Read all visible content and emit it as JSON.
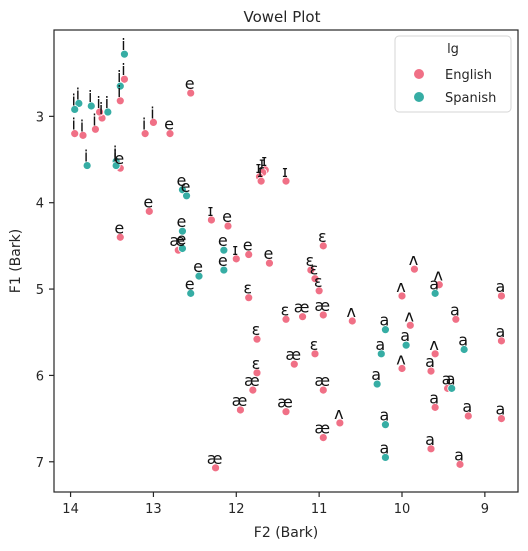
{
  "chart_data": {
    "type": "scatter",
    "title": "Vowel Plot",
    "xlabel": "F2 (Bark)",
    "ylabel": "F1 (Bark)",
    "xlim": [
      14.2,
      8.6
    ],
    "ylim": [
      7.35,
      2.0
    ],
    "xticks": [
      14,
      13,
      12,
      11,
      10,
      9
    ],
    "yticks": [
      3,
      4,
      5,
      6,
      7
    ],
    "grid": false,
    "legend": {
      "title": "lg",
      "placement": "top-right",
      "entries": [
        "English",
        "Spanish"
      ]
    },
    "colors": {
      "English": "#f07086",
      "Spanish": "#36ada4"
    },
    "series": [
      {
        "name": "English",
        "points": [
          {
            "x": 13.35,
            "y": 2.57,
            "label": "i"
          },
          {
            "x": 13.0,
            "y": 3.07,
            "label": "i"
          },
          {
            "x": 13.4,
            "y": 2.82,
            "label": "i"
          },
          {
            "x": 13.1,
            "y": 3.2,
            "label": "i"
          },
          {
            "x": 13.62,
            "y": 3.02,
            "label": "i"
          },
          {
            "x": 13.65,
            "y": 2.95,
            "label": "i"
          },
          {
            "x": 13.7,
            "y": 3.15,
            "label": "i"
          },
          {
            "x": 13.85,
            "y": 3.22,
            "label": "i"
          },
          {
            "x": 13.95,
            "y": 3.2,
            "label": "i"
          },
          {
            "x": 13.4,
            "y": 3.6,
            "label": "e"
          },
          {
            "x": 12.55,
            "y": 2.73,
            "label": "e"
          },
          {
            "x": 12.8,
            "y": 3.2,
            "label": "e"
          },
          {
            "x": 13.05,
            "y": 4.1,
            "label": "e"
          },
          {
            "x": 13.4,
            "y": 4.4,
            "label": "e"
          },
          {
            "x": 12.1,
            "y": 4.27,
            "label": "e"
          },
          {
            "x": 11.85,
            "y": 4.6,
            "label": "e"
          },
          {
            "x": 11.6,
            "y": 4.7,
            "label": "e"
          },
          {
            "x": 11.65,
            "y": 3.62,
            "label": "ɪ"
          },
          {
            "x": 11.68,
            "y": 3.65,
            "label": "ɪ"
          },
          {
            "x": 11.72,
            "y": 3.7,
            "label": "ɪ"
          },
          {
            "x": 11.7,
            "y": 3.75,
            "label": "ɪ"
          },
          {
            "x": 11.4,
            "y": 3.75,
            "label": "ɪ"
          },
          {
            "x": 12.3,
            "y": 4.2,
            "label": "ɪ"
          },
          {
            "x": 12.0,
            "y": 4.65,
            "label": "ɪ"
          },
          {
            "x": 10.95,
            "y": 4.5,
            "label": "ɛ"
          },
          {
            "x": 11.1,
            "y": 4.78,
            "label": "ɛ"
          },
          {
            "x": 11.05,
            "y": 4.88,
            "label": "ɛ"
          },
          {
            "x": 11.0,
            "y": 5.02,
            "label": "ɛ"
          },
          {
            "x": 11.85,
            "y": 5.1,
            "label": "ɛ"
          },
          {
            "x": 11.4,
            "y": 5.35,
            "label": "ɛ"
          },
          {
            "x": 11.75,
            "y": 5.58,
            "label": "ɛ"
          },
          {
            "x": 11.05,
            "y": 5.75,
            "label": "ɛ"
          },
          {
            "x": 11.75,
            "y": 5.97,
            "label": "ɛ"
          },
          {
            "x": 12.7,
            "y": 4.55,
            "label": "æ"
          },
          {
            "x": 11.2,
            "y": 5.32,
            "label": "æ"
          },
          {
            "x": 10.95,
            "y": 5.3,
            "label": "æ"
          },
          {
            "x": 11.3,
            "y": 5.87,
            "label": "æ"
          },
          {
            "x": 11.8,
            "y": 6.17,
            "label": "æ"
          },
          {
            "x": 10.95,
            "y": 6.17,
            "label": "æ"
          },
          {
            "x": 11.95,
            "y": 6.4,
            "label": "æ"
          },
          {
            "x": 11.4,
            "y": 6.42,
            "label": "æ"
          },
          {
            "x": 10.95,
            "y": 6.72,
            "label": "æ"
          },
          {
            "x": 12.25,
            "y": 7.07,
            "label": "æ"
          },
          {
            "x": 9.85,
            "y": 4.77,
            "label": "ʌ"
          },
          {
            "x": 9.55,
            "y": 4.95,
            "label": "ʌ"
          },
          {
            "x": 10.0,
            "y": 5.08,
            "label": "ʌ"
          },
          {
            "x": 10.6,
            "y": 5.37,
            "label": "ʌ"
          },
          {
            "x": 9.9,
            "y": 5.42,
            "label": "ʌ"
          },
          {
            "x": 9.6,
            "y": 5.75,
            "label": "ʌ"
          },
          {
            "x": 10.0,
            "y": 5.92,
            "label": "ʌ"
          },
          {
            "x": 10.75,
            "y": 6.55,
            "label": "ʌ"
          },
          {
            "x": 8.8,
            "y": 5.08,
            "label": "a"
          },
          {
            "x": 9.35,
            "y": 5.35,
            "label": "a"
          },
          {
            "x": 8.8,
            "y": 5.6,
            "label": "a"
          },
          {
            "x": 9.65,
            "y": 5.95,
            "label": "a"
          },
          {
            "x": 9.45,
            "y": 6.15,
            "label": "a"
          },
          {
            "x": 9.6,
            "y": 6.37,
            "label": "a"
          },
          {
            "x": 9.2,
            "y": 6.47,
            "label": "a"
          },
          {
            "x": 8.8,
            "y": 6.5,
            "label": "a"
          },
          {
            "x": 9.65,
            "y": 6.85,
            "label": "a"
          },
          {
            "x": 9.3,
            "y": 7.03,
            "label": "a"
          }
        ]
      },
      {
        "name": "Spanish",
        "points": [
          {
            "x": 13.35,
            "y": 2.28,
            "label": "i"
          },
          {
            "x": 13.4,
            "y": 2.65,
            "label": "i"
          },
          {
            "x": 13.55,
            "y": 2.95,
            "label": "i"
          },
          {
            "x": 13.75,
            "y": 2.88,
            "label": "i"
          },
          {
            "x": 13.9,
            "y": 2.85,
            "label": "i"
          },
          {
            "x": 13.95,
            "y": 2.92,
            "label": "i"
          },
          {
            "x": 13.8,
            "y": 3.57,
            "label": "i"
          },
          {
            "x": 13.45,
            "y": 3.52,
            "label": "i"
          },
          {
            "x": 13.45,
            "y": 3.57,
            "label": "i"
          },
          {
            "x": 12.65,
            "y": 3.85,
            "label": "e"
          },
          {
            "x": 12.6,
            "y": 3.92,
            "label": "e"
          },
          {
            "x": 12.65,
            "y": 4.33,
            "label": "e"
          },
          {
            "x": 12.65,
            "y": 4.53,
            "label": "e"
          },
          {
            "x": 12.15,
            "y": 4.55,
            "label": "e"
          },
          {
            "x": 12.15,
            "y": 4.78,
            "label": "e"
          },
          {
            "x": 12.45,
            "y": 4.85,
            "label": "e"
          },
          {
            "x": 12.55,
            "y": 5.05,
            "label": "e"
          },
          {
            "x": 10.2,
            "y": 5.47,
            "label": "a"
          },
          {
            "x": 10.25,
            "y": 5.75,
            "label": "a"
          },
          {
            "x": 9.95,
            "y": 5.65,
            "label": "a"
          },
          {
            "x": 9.6,
            "y": 5.05,
            "label": "a"
          },
          {
            "x": 9.25,
            "y": 5.7,
            "label": "a"
          },
          {
            "x": 10.3,
            "y": 6.1,
            "label": "a"
          },
          {
            "x": 9.4,
            "y": 6.15,
            "label": "a"
          },
          {
            "x": 10.2,
            "y": 6.57,
            "label": "a"
          },
          {
            "x": 10.2,
            "y": 6.95,
            "label": "a"
          }
        ]
      }
    ]
  }
}
